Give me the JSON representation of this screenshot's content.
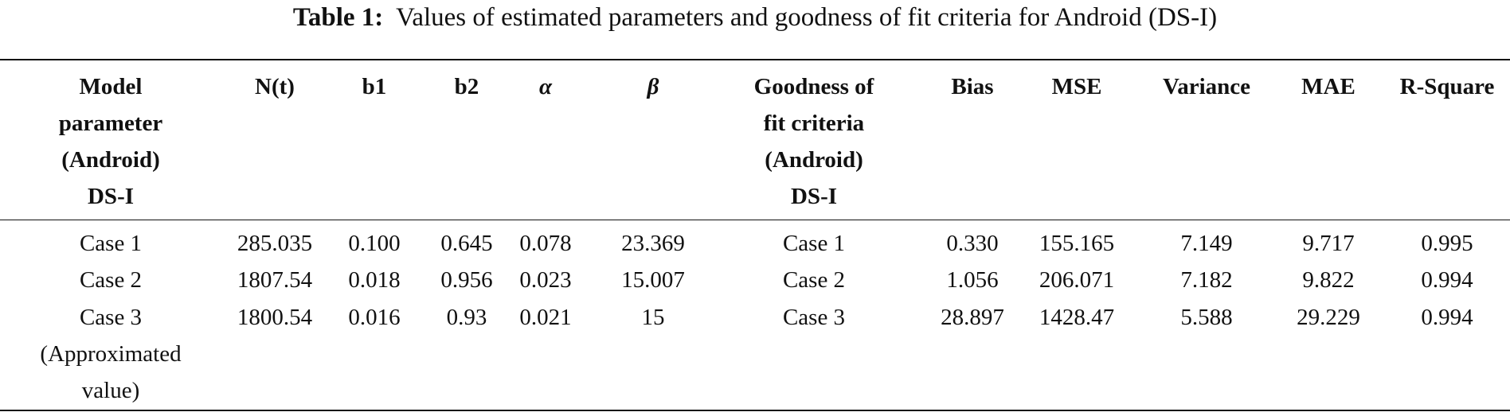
{
  "caption": {
    "label": "Table 1:",
    "text": "Values of estimated parameters and goodness of fit criteria for Android (DS-I)"
  },
  "table": {
    "header": [
      [
        "Model",
        "parameter",
        "(Android)",
        "DS-I"
      ],
      [
        "N(t)"
      ],
      [
        "b1"
      ],
      [
        "b2"
      ],
      [
        "α"
      ],
      [
        "β"
      ],
      [
        "Goodness of",
        "fit criteria",
        "(Android)",
        "DS-I"
      ],
      [
        "Bias"
      ],
      [
        "MSE"
      ],
      [
        "Variance"
      ],
      [
        "MAE"
      ],
      [
        "R-Square"
      ]
    ],
    "rows": [
      [
        "Case 1",
        "285.035",
        "0.100",
        "0.645",
        "0.078",
        "23.369",
        "Case 1",
        "0.330",
        "155.165",
        "7.149",
        "9.717",
        "0.995"
      ],
      [
        "Case 2",
        "1807.54",
        "0.018",
        "0.956",
        "0.023",
        "15.007",
        "Case 2",
        "1.056",
        "206.071",
        "7.182",
        "9.822",
        "0.994"
      ],
      [
        "Case 3 (Approximated value)",
        "1800.54",
        "0.016",
        "0.93",
        "0.021",
        "15",
        "Case 3",
        "28.897",
        "1428.47",
        "5.588",
        "29.229",
        "0.994"
      ]
    ]
  }
}
